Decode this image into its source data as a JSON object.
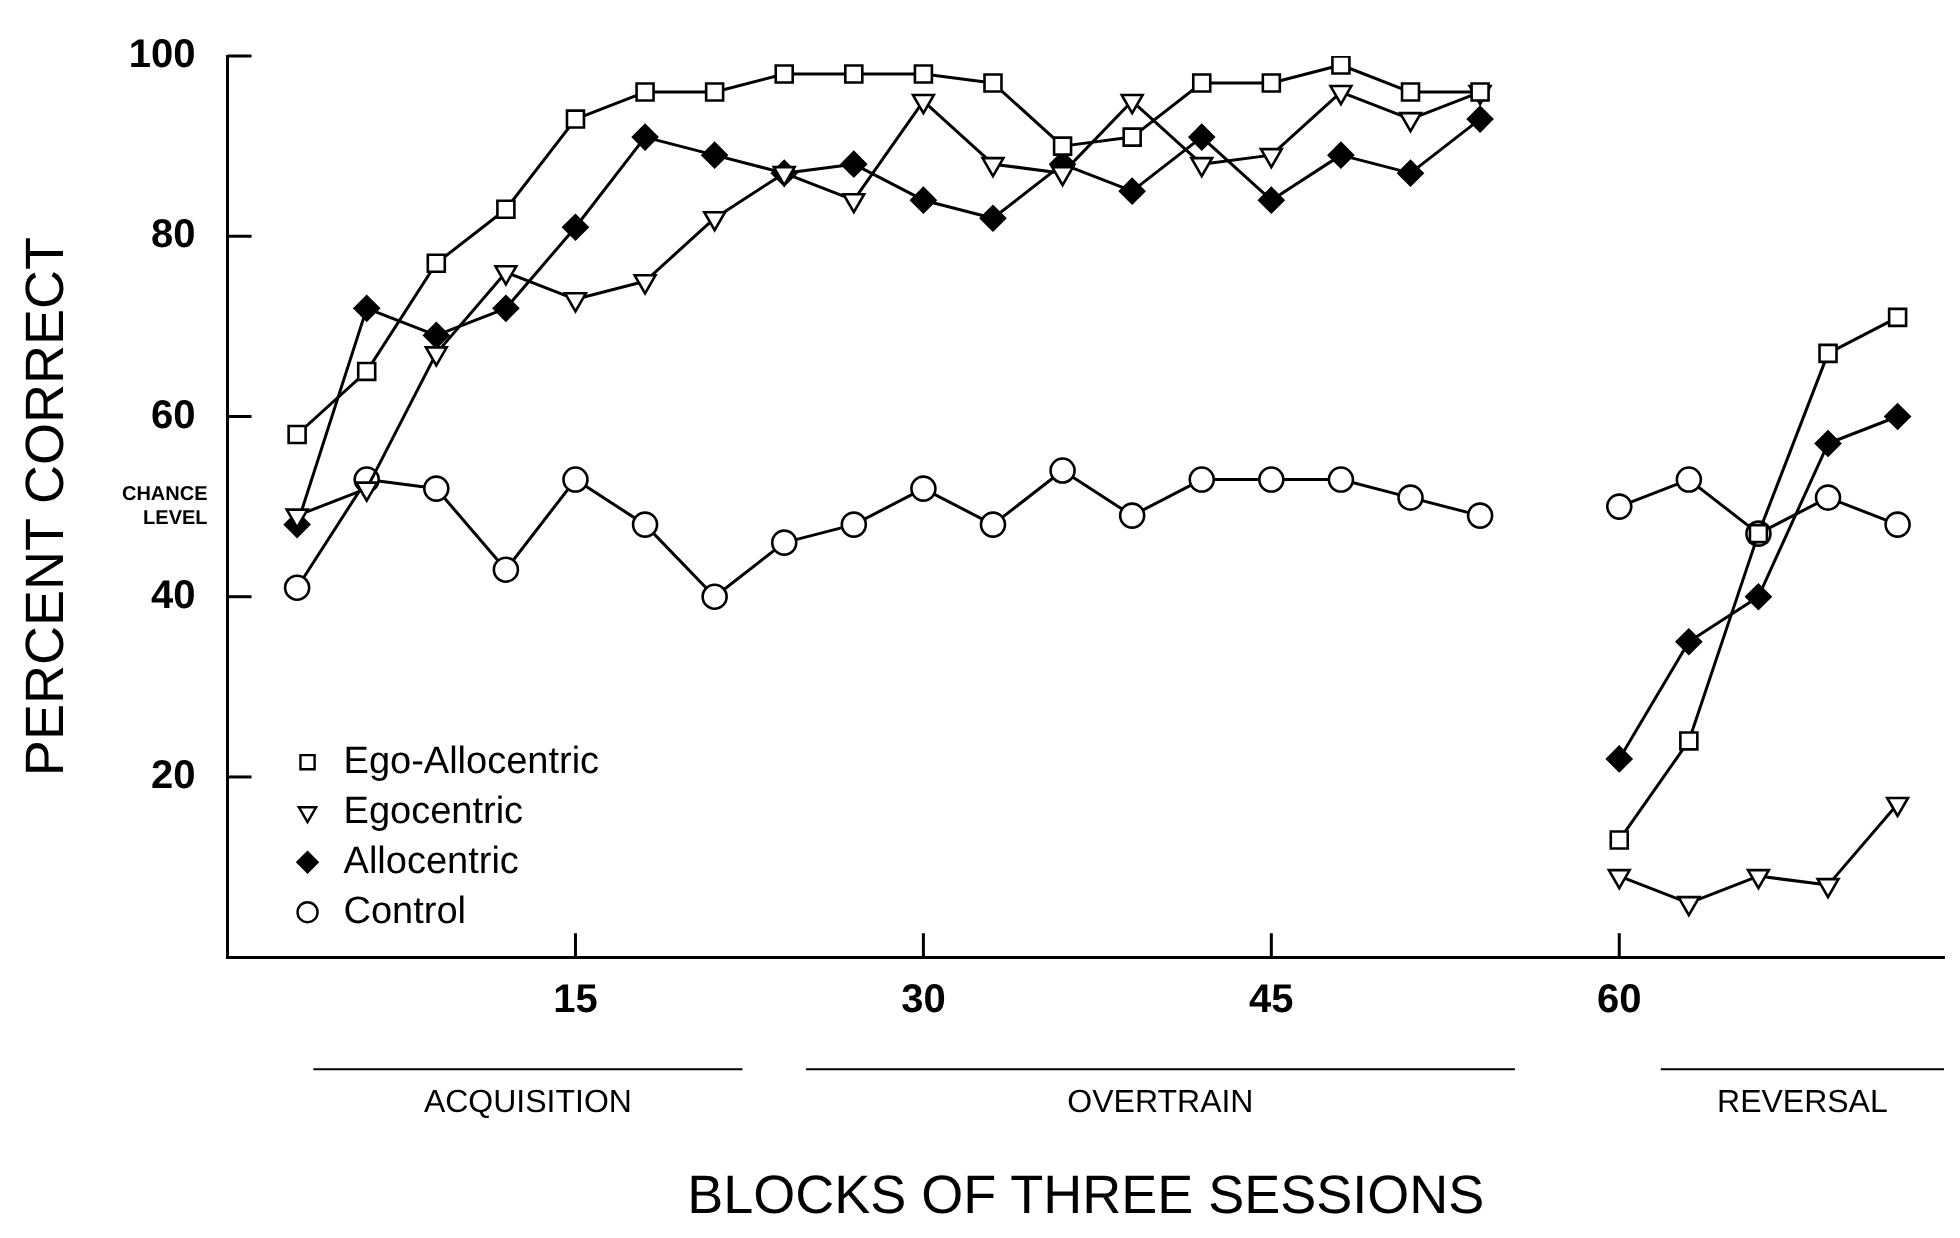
{
  "chart_data": {
    "type": "line",
    "xlabel": "BLOCKS OF THREE SESSIONS",
    "ylabel": "PERCENT CORRECT",
    "x": [
      3,
      6,
      9,
      12,
      15,
      18,
      21,
      24,
      27,
      30,
      33,
      36,
      39,
      42,
      45,
      48,
      51,
      54,
      57,
      60,
      63,
      66,
      69,
      72
    ],
    "series": [
      {
        "name": "Ego-Allocentric",
        "color": "#000000",
        "marker": "square",
        "values": [
          58,
          65,
          77,
          83,
          93,
          96,
          96,
          98,
          98,
          98,
          97,
          90,
          91,
          97,
          97,
          99,
          96,
          96,
          null,
          13,
          24,
          47,
          67,
          71
        ]
      },
      {
        "name": "Egocentric",
        "color": "#000000",
        "marker": "triangle",
        "values": [
          49,
          52,
          67,
          76,
          73,
          75,
          82,
          87,
          84,
          95,
          88,
          87,
          95,
          88,
          89,
          96,
          93,
          96,
          null,
          9,
          6,
          9,
          8,
          17
        ]
      },
      {
        "name": "Allocentric",
        "color": "#000000",
        "marker": "diamond",
        "values": [
          48,
          72,
          69,
          72,
          81,
          91,
          89,
          87,
          88,
          84,
          82,
          88,
          85,
          91,
          84,
          89,
          87,
          93,
          null,
          22,
          35,
          40,
          57,
          60
        ]
      },
      {
        "name": "Control",
        "color": "#000000",
        "marker": "circle",
        "values": [
          41,
          53,
          52,
          43,
          53,
          48,
          40,
          46,
          48,
          52,
          48,
          54,
          49,
          53,
          53,
          53,
          51,
          49,
          null,
          50,
          53,
          47,
          51,
          48
        ]
      }
    ],
    "xlim": [
      0,
      74
    ],
    "xticks": [
      15,
      30,
      45,
      60
    ],
    "ylim": [
      0,
      100
    ],
    "yticks": [
      20,
      40,
      60,
      80,
      100
    ],
    "grid": false,
    "legend": "bottom left",
    "line_style": "solid",
    "annotations": [
      "CHANCE LEVEL",
      "ACQUISITION",
      "OVERTRAIN",
      "REVERSAL"
    ]
  }
}
